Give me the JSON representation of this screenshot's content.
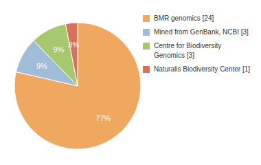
{
  "chart_data": {
    "type": "pie",
    "categories": [
      "BMR genomics [24]",
      "Mined from GenBank, NCBI [3]",
      "Centre for Biodiversity\nGenomics [3]",
      "Naturalis Biodiversity Center [1]"
    ],
    "values": [
      77,
      9,
      9,
      3
    ],
    "value_labels": [
      "77%",
      "9%",
      "9%",
      "3%"
    ],
    "colors": [
      "#f0a860",
      "#a0bcd8",
      "#a8c870",
      "#d87060"
    ],
    "data_labels": true,
    "legend": "right"
  }
}
